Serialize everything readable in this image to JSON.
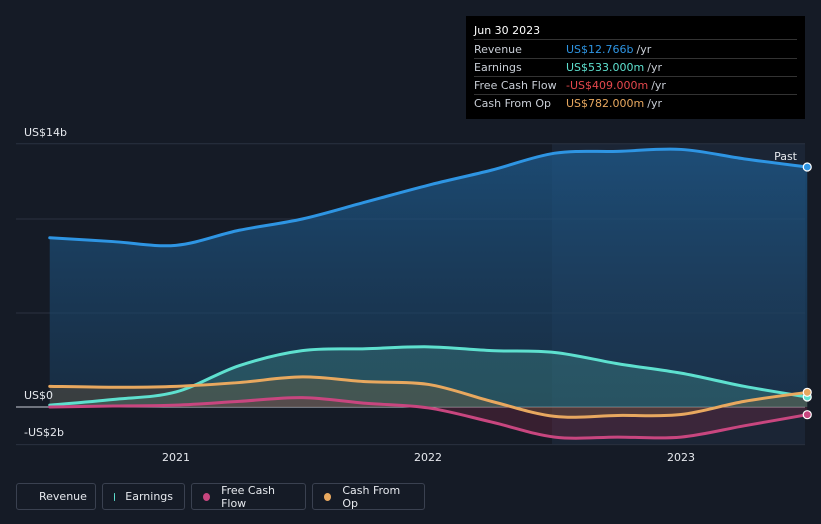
{
  "chart_data": {
    "type": "line",
    "x_axis": {
      "ticks": [
        "2021",
        "2022",
        "2023"
      ]
    },
    "y_axis": {
      "ticks": [
        "US$14b",
        "US$0",
        "-US$2b"
      ],
      "range": [
        -2,
        14
      ]
    },
    "series": [
      {
        "name": "Revenue",
        "color": "#2e95e3",
        "points": [
          [
            2020.5,
            9.0
          ],
          [
            2020.75,
            8.8
          ],
          [
            2021.0,
            8.6
          ],
          [
            2021.25,
            9.4
          ],
          [
            2021.5,
            10.0
          ],
          [
            2021.75,
            10.9
          ],
          [
            2022.0,
            11.8
          ],
          [
            2022.25,
            12.6
          ],
          [
            2022.5,
            13.5
          ],
          [
            2022.75,
            13.6
          ],
          [
            2023.0,
            13.7
          ],
          [
            2023.25,
            13.2
          ],
          [
            2023.5,
            12.766
          ]
        ]
      },
      {
        "name": "Earnings",
        "color": "#5ee0cf",
        "points": [
          [
            2020.5,
            0.1
          ],
          [
            2020.75,
            0.4
          ],
          [
            2021.0,
            0.8
          ],
          [
            2021.25,
            2.2
          ],
          [
            2021.5,
            3.0
          ],
          [
            2021.75,
            3.1
          ],
          [
            2022.0,
            3.2
          ],
          [
            2022.25,
            3.0
          ],
          [
            2022.5,
            2.9
          ],
          [
            2022.75,
            2.3
          ],
          [
            2023.0,
            1.8
          ],
          [
            2023.25,
            1.1
          ],
          [
            2023.5,
            0.533
          ]
        ]
      },
      {
        "name": "Free Cash Flow",
        "color": "#c8467f",
        "points": [
          [
            2020.5,
            0.0
          ],
          [
            2020.75,
            0.05
          ],
          [
            2021.0,
            0.1
          ],
          [
            2021.25,
            0.3
          ],
          [
            2021.5,
            0.5
          ],
          [
            2021.75,
            0.2
          ],
          [
            2022.0,
            -0.05
          ],
          [
            2022.25,
            -0.8
          ],
          [
            2022.5,
            -1.6
          ],
          [
            2022.75,
            -1.6
          ],
          [
            2023.0,
            -1.6
          ],
          [
            2023.25,
            -1.0
          ],
          [
            2023.5,
            -0.409
          ]
        ]
      },
      {
        "name": "Cash From Op",
        "color": "#e8a85f",
        "points": [
          [
            2020.5,
            1.1
          ],
          [
            2020.75,
            1.05
          ],
          [
            2021.0,
            1.1
          ],
          [
            2021.25,
            1.3
          ],
          [
            2021.5,
            1.6
          ],
          [
            2021.75,
            1.35
          ],
          [
            2022.0,
            1.2
          ],
          [
            2022.25,
            0.3
          ],
          [
            2022.5,
            -0.5
          ],
          [
            2022.75,
            -0.45
          ],
          [
            2023.0,
            -0.4
          ],
          [
            2023.25,
            0.3
          ],
          [
            2023.5,
            0.782
          ]
        ]
      }
    ],
    "past_label": "Past",
    "grid": true
  },
  "tooltip": {
    "date": "Jun 30 2023",
    "unit": "/yr",
    "rows": [
      {
        "label": "Revenue",
        "value": "US$12.766b",
        "color": "#2e95e3"
      },
      {
        "label": "Earnings",
        "value": "US$533.000m",
        "color": "#5ee0cf"
      },
      {
        "label": "Free Cash Flow",
        "value": "-US$409.000m",
        "color": "#e5484d"
      },
      {
        "label": "Cash From Op",
        "value": "US$782.000m",
        "color": "#e8a85f"
      }
    ]
  },
  "legend": [
    {
      "label": "Revenue",
      "color": "#2e95e3"
    },
    {
      "label": "Earnings",
      "color": "#5ee0cf"
    },
    {
      "label": "Free Cash Flow",
      "color": "#c8467f"
    },
    {
      "label": "Cash From Op",
      "color": "#e8a85f"
    }
  ]
}
